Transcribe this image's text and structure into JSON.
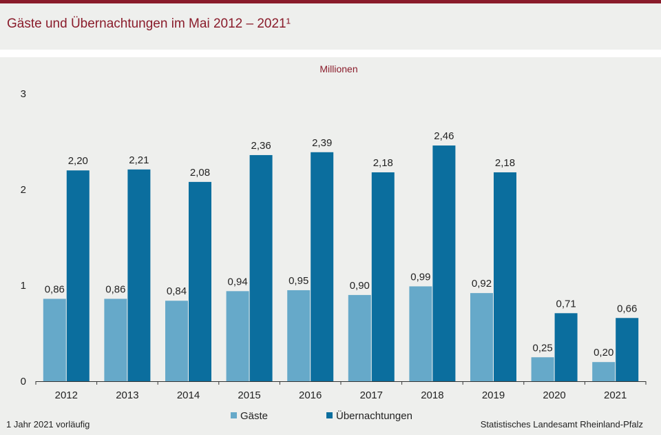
{
  "title": "Gäste und Übernachtungen im Mai 2012 – 2021¹",
  "footnote": "1 Jahr 2021 vorläufig",
  "source": "Statistisches Landesamt  Rheinland-Pfalz",
  "colors": {
    "accent": "#8a1c2b",
    "gaeste": "#66a9c9",
    "uebernachtungen": "#0b6e9e"
  },
  "chart_data": {
    "type": "bar",
    "unit_label": "Millionen",
    "categories": [
      "2012",
      "2013",
      "2014",
      "2015",
      "2016",
      "2017",
      "2018",
      "2019",
      "2020",
      "2021"
    ],
    "series": [
      {
        "name": "Gäste",
        "values": [
          0.86,
          0.86,
          0.84,
          0.94,
          0.95,
          0.9,
          0.99,
          0.92,
          0.25,
          0.2
        ],
        "labels": [
          "0,86",
          "0,86",
          "0,84",
          "0,94",
          "0,95",
          "0,90",
          "0,99",
          "0,92",
          "0,25",
          "0,20"
        ]
      },
      {
        "name": "Übernachtungen",
        "values": [
          2.2,
          2.21,
          2.08,
          2.36,
          2.39,
          2.18,
          2.46,
          2.18,
          0.71,
          0.66
        ],
        "labels": [
          "2,20",
          "2,21",
          "2,08",
          "2,36",
          "2,39",
          "2,18",
          "2,46",
          "2,18",
          "0,71",
          "0,66"
        ]
      }
    ],
    "ylim": [
      0,
      3
    ],
    "yticks": [
      "0",
      "1",
      "2",
      "3"
    ],
    "grid": false,
    "legend": "bottom-center"
  }
}
